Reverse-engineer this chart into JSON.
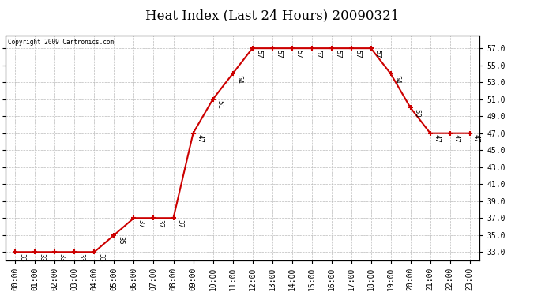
{
  "title": "Heat Index (Last 24 Hours) 20090321",
  "copyright": "Copyright 2009 Cartronics.com",
  "x_labels": [
    "00:00",
    "01:00",
    "02:00",
    "03:00",
    "04:00",
    "05:00",
    "06:00",
    "07:00",
    "08:00",
    "09:00",
    "10:00",
    "11:00",
    "12:00",
    "13:00",
    "14:00",
    "15:00",
    "16:00",
    "17:00",
    "18:00",
    "19:00",
    "20:00",
    "21:00",
    "22:00",
    "23:00"
  ],
  "y_values": [
    33,
    33,
    33,
    33,
    33,
    35,
    37,
    37,
    37,
    47,
    51,
    54,
    57,
    57,
    57,
    57,
    57,
    57,
    57,
    54,
    50,
    47,
    47,
    47
  ],
  "y_ticks": [
    33.0,
    35.0,
    37.0,
    39.0,
    41.0,
    43.0,
    45.0,
    47.0,
    49.0,
    51.0,
    53.0,
    55.0,
    57.0
  ],
  "y_tick_labels": [
    "33.0",
    "35.0",
    "37.0",
    "39.0",
    "41.0",
    "43.0",
    "45.0",
    "47.0",
    "49.0",
    "51.0",
    "53.0",
    "55.0",
    "57.0"
  ],
  "ylim": [
    32.0,
    58.5
  ],
  "line_color": "#cc0000",
  "bg_color": "#ffffff",
  "grid_color": "#bbbbbb",
  "title_fontsize": 12,
  "label_fontsize": 7,
  "annot_fontsize": 6.5
}
